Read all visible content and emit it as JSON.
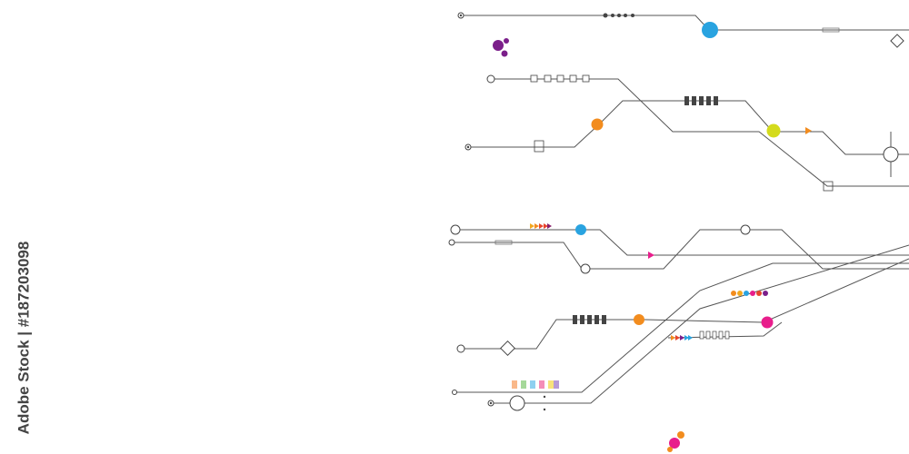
{
  "watermark": {
    "text": "Adobe Stock | #187203098"
  }
}
